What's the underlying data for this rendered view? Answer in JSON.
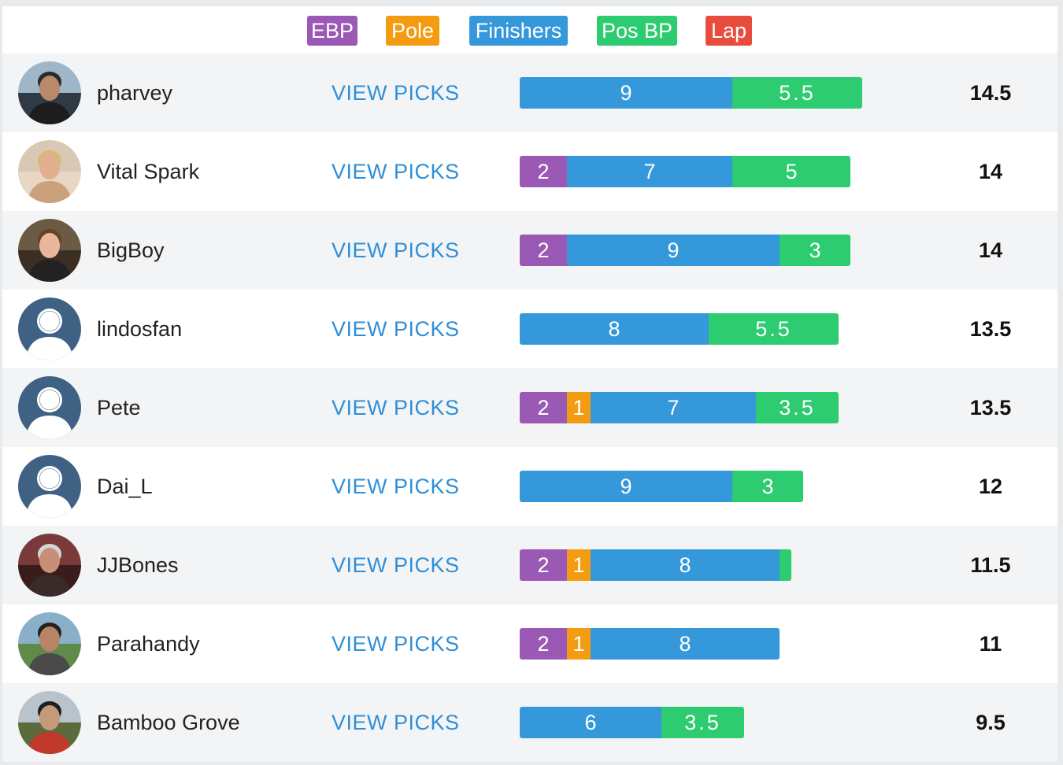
{
  "colors": {
    "ebp": "#9b59b6",
    "pole": "#f39c12",
    "finishers": "#3498db",
    "pos_bp": "#2ecc71",
    "lap": "#e74c3c",
    "link": "#2f8fd8"
  },
  "legend": [
    {
      "key": "ebp",
      "label": "EBP"
    },
    {
      "key": "pole",
      "label": "Pole"
    },
    {
      "key": "finishers",
      "label": "Finishers"
    },
    {
      "key": "pos_bp",
      "label": "Pos BP"
    },
    {
      "key": "lap",
      "label": "Lap"
    }
  ],
  "rows": [
    {
      "username": "pharvey",
      "avatar_icon": "user-photo-icon",
      "view_picks_label": "VIEW PICKS",
      "total": "14.5",
      "segments": [
        {
          "key": "finishers",
          "value": 9,
          "label": "9"
        },
        {
          "key": "pos_bp",
          "value": 5.5,
          "label": "5.5"
        }
      ]
    },
    {
      "username": "Vital Spark",
      "avatar_icon": "user-photo-icon",
      "view_picks_label": "VIEW PICKS",
      "total": "14",
      "segments": [
        {
          "key": "ebp",
          "value": 2,
          "label": "2"
        },
        {
          "key": "finishers",
          "value": 7,
          "label": "7"
        },
        {
          "key": "pos_bp",
          "value": 5,
          "label": "5"
        }
      ]
    },
    {
      "username": "BigBoy",
      "avatar_icon": "user-photo-icon",
      "view_picks_label": "VIEW PICKS",
      "total": "14",
      "segments": [
        {
          "key": "ebp",
          "value": 2,
          "label": "2"
        },
        {
          "key": "finishers",
          "value": 9,
          "label": "9"
        },
        {
          "key": "pos_bp",
          "value": 3,
          "label": "3"
        }
      ]
    },
    {
      "username": "lindosfan",
      "avatar_icon": "default-user-icon",
      "view_picks_label": "VIEW PICKS",
      "total": "13.5",
      "segments": [
        {
          "key": "finishers",
          "value": 8,
          "label": "8"
        },
        {
          "key": "pos_bp",
          "value": 5.5,
          "label": "5.5"
        }
      ]
    },
    {
      "username": "Pete",
      "avatar_icon": "default-user-icon",
      "view_picks_label": "VIEW PICKS",
      "total": "13.5",
      "segments": [
        {
          "key": "ebp",
          "value": 2,
          "label": "2"
        },
        {
          "key": "pole",
          "value": 1,
          "label": "1"
        },
        {
          "key": "finishers",
          "value": 7,
          "label": "7"
        },
        {
          "key": "pos_bp",
          "value": 3.5,
          "label": "3.5"
        }
      ]
    },
    {
      "username": "Dai_L",
      "avatar_icon": "default-user-icon",
      "view_picks_label": "VIEW PICKS",
      "total": "12",
      "segments": [
        {
          "key": "finishers",
          "value": 9,
          "label": "9"
        },
        {
          "key": "pos_bp",
          "value": 3,
          "label": "3"
        }
      ]
    },
    {
      "username": "JJBones",
      "avatar_icon": "user-photo-icon",
      "view_picks_label": "VIEW PICKS",
      "total": "11.5",
      "segments": [
        {
          "key": "ebp",
          "value": 2,
          "label": "2"
        },
        {
          "key": "pole",
          "value": 1,
          "label": "1"
        },
        {
          "key": "finishers",
          "value": 8,
          "label": "8"
        },
        {
          "key": "pos_bp",
          "value": 0.5,
          "label": ""
        }
      ]
    },
    {
      "username": "Parahandy",
      "avatar_icon": "user-photo-icon",
      "view_picks_label": "VIEW PICKS",
      "total": "11",
      "segments": [
        {
          "key": "ebp",
          "value": 2,
          "label": "2"
        },
        {
          "key": "pole",
          "value": 1,
          "label": "1"
        },
        {
          "key": "finishers",
          "value": 8,
          "label": "8"
        }
      ]
    },
    {
      "username": "Bamboo Grove",
      "avatar_icon": "user-photo-icon",
      "view_picks_label": "VIEW PICKS",
      "total": "9.5",
      "segments": [
        {
          "key": "finishers",
          "value": 6,
          "label": "6"
        },
        {
          "key": "pos_bp",
          "value": 3.5,
          "label": "3.5"
        }
      ]
    }
  ]
}
